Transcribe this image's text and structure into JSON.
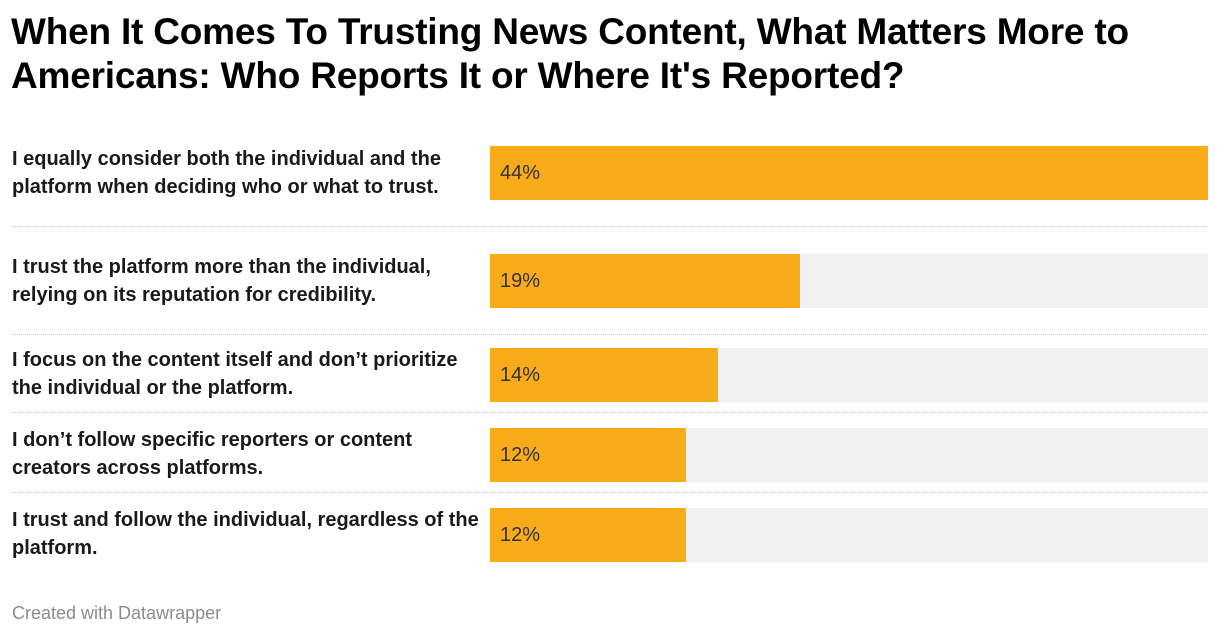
{
  "title": "When It Comes To Trusting News Content, What Matters More to Americans: Who Reports It or Where It's Reported?",
  "footer": "Created with Datawrapper",
  "colors": {
    "bar": "#faab1a",
    "track": "#f0f0f0"
  },
  "chart_data": {
    "type": "bar",
    "orientation": "horizontal",
    "title": "When It Comes To Trusting News Content, What Matters More to Americans: Who Reports It or Where It's Reported?",
    "categories": [
      "I equally consider both the individual and the platform when deciding who or what to trust.",
      "I trust the platform more than the individual, relying on its reputation for credibility.",
      "I focus on the content itself and don’t prioritize the individual or the platform.",
      "I don’t follow specific reporters or content creators across platforms.",
      "I trust and follow the individual, regardless of the platform."
    ],
    "values": [
      44,
      19,
      14,
      12,
      12
    ],
    "value_labels": [
      "44%",
      "19%",
      "14%",
      "12%",
      "12%"
    ],
    "unit": "%",
    "xlim": [
      0,
      44
    ],
    "grid": false,
    "legend": "none"
  }
}
